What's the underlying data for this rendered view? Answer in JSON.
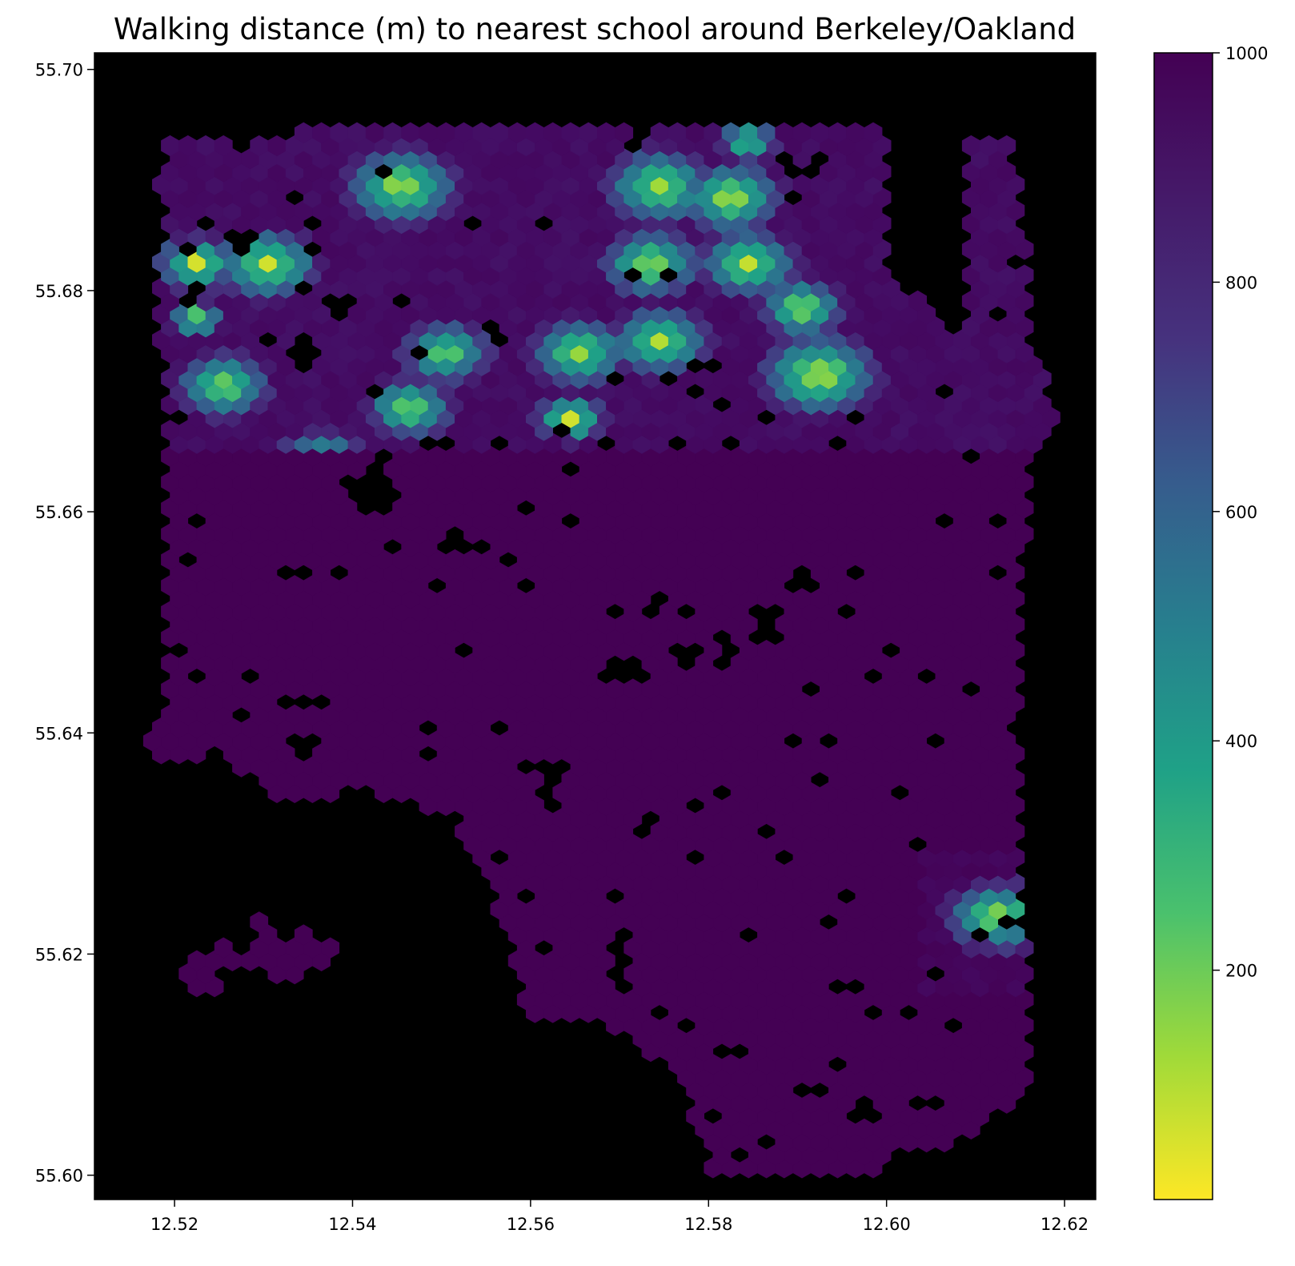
{
  "chart_data": {
    "type": "heatmap",
    "subtype": "hexbin",
    "title": "Walking distance (m) to nearest school around Berkeley/Oakland",
    "xlabel": "",
    "ylabel": "",
    "xlim": [
      12.511,
      12.6235
    ],
    "ylim": [
      55.5978,
      55.7015
    ],
    "x_ticks": [
      "12.52",
      "12.54",
      "12.56",
      "12.58",
      "12.60",
      "12.62"
    ],
    "x_tick_values": [
      12.52,
      12.54,
      12.56,
      12.58,
      12.6,
      12.62
    ],
    "y_ticks": [
      "55.60",
      "55.62",
      "55.64",
      "55.66",
      "55.68",
      "55.70"
    ],
    "y_tick_values": [
      55.6,
      55.62,
      55.64,
      55.66,
      55.68,
      55.7
    ],
    "background_color": "#000000",
    "grid": false,
    "colorbar": {
      "colormap": "viridis_r",
      "min": 0,
      "max": 1000,
      "ticks": [
        "200",
        "400",
        "600",
        "800",
        "1000"
      ],
      "tick_values": [
        200,
        400,
        600,
        800,
        1000
      ]
    },
    "hex_dx": 0.002,
    "hex_dy": 0.00117,
    "coverage_regions": [
      {
        "name": "north",
        "polygon": [
          [
            12.518,
            55.6935
          ],
          [
            12.537,
            55.6945
          ],
          [
            12.56,
            55.6945
          ],
          [
            12.575,
            55.6945
          ],
          [
            12.594,
            55.6945
          ],
          [
            12.6,
            55.6945
          ],
          [
            12.6,
            55.682
          ],
          [
            12.606,
            55.6775
          ],
          [
            12.609,
            55.6765
          ],
          [
            12.609,
            55.6935
          ],
          [
            12.614,
            55.6935
          ],
          [
            12.6155,
            55.685
          ],
          [
            12.616,
            55.676
          ],
          [
            12.619,
            55.669
          ],
          [
            12.6155,
            55.665
          ],
          [
            12.6165,
            55.6595
          ],
          [
            12.6145,
            55.652
          ],
          [
            12.615,
            55.643
          ],
          [
            12.6145,
            55.6315
          ],
          [
            12.6155,
            55.622
          ],
          [
            12.616,
            55.6075
          ],
          [
            12.608,
            55.603
          ],
          [
            12.595,
            55.5995
          ],
          [
            12.58,
            55.6005
          ],
          [
            12.5775,
            55.608
          ],
          [
            12.568,
            55.6145
          ],
          [
            12.5595,
            55.6145
          ],
          [
            12.5575,
            55.622
          ],
          [
            12.552,
            55.6315
          ],
          [
            12.546,
            55.634
          ],
          [
            12.532,
            55.634
          ],
          [
            12.5255,
            55.6375
          ],
          [
            12.516,
            55.637
          ],
          [
            12.519,
            55.642
          ],
          [
            12.5185,
            55.652
          ],
          [
            12.519,
            55.662
          ],
          [
            12.519,
            55.67
          ],
          [
            12.5175,
            55.678
          ],
          [
            12.519,
            55.685
          ]
        ]
      },
      {
        "name": "south-west-scatter",
        "polygon": [
          [
            12.521,
            55.619
          ],
          [
            12.528,
            55.6235
          ],
          [
            12.535,
            55.6225
          ],
          [
            12.5385,
            55.6205
          ],
          [
            12.533,
            55.6165
          ],
          [
            12.524,
            55.6165
          ],
          [
            12.519,
            55.6165
          ]
        ]
      }
    ],
    "gaps": [
      [
        12.563,
        55.6675,
        0.0045,
        0.0015
      ],
      [
        12.556,
        55.6755,
        0.0025,
        0.004
      ],
      [
        12.603,
        55.6815,
        0.0035,
        0.0025
      ],
      [
        12.612,
        55.6785,
        0.0025,
        0.003
      ],
      [
        12.6055,
        55.6825,
        0.002,
        0.002
      ],
      [
        12.5425,
        55.6615,
        0.0045,
        0.0025
      ],
      [
        12.559,
        55.6535,
        0.003,
        0.0025
      ],
      [
        12.5745,
        55.6515,
        0.0035,
        0.002
      ],
      [
        12.5795,
        55.6465,
        0.007,
        0.0025
      ],
      [
        12.571,
        55.6455,
        0.0055,
        0.002
      ],
      [
        12.5865,
        55.6495,
        0.003,
        0.0035
      ],
      [
        12.5905,
        55.6535,
        0.0025,
        0.002
      ],
      [
        12.5215,
        55.6475,
        0.0025,
        0.002
      ],
      [
        12.5485,
        55.6395,
        0.0025,
        0.003
      ],
      [
        12.5565,
        55.6405,
        0.0035,
        0.002
      ],
      [
        12.5275,
        55.6415,
        0.003,
        0.002
      ],
      [
        12.5345,
        55.6385,
        0.0025,
        0.002
      ],
      [
        12.5405,
        55.6345,
        0.0045,
        0.0015
      ],
      [
        12.5625,
        55.6355,
        0.003,
        0.0045
      ],
      [
        12.5735,
        55.6325,
        0.003,
        0.0045
      ],
      [
        12.5695,
        55.6195,
        0.002,
        0.006
      ],
      [
        12.5905,
        55.6075,
        0.0035,
        0.0015
      ],
      [
        12.5975,
        55.6055,
        0.004,
        0.002
      ],
      [
        12.6045,
        55.6065,
        0.005,
        0.0015
      ],
      [
        12.6105,
        55.6015,
        0.0045,
        0.0045
      ],
      [
        12.602,
        55.6015,
        0.004,
        0.0025
      ],
      [
        12.5475,
        55.6135,
        0.0035,
        0.0035
      ]
    ],
    "pockets": [
      [
        12.5405,
        55.6965,
        0.0012
      ],
      [
        12.5275,
        55.6845,
        0.0015
      ],
      [
        12.5345,
        55.6735,
        0.002
      ],
      [
        12.5385,
        55.6785,
        0.002
      ],
      [
        12.5495,
        55.6665,
        0.0015
      ],
      [
        12.5445,
        55.6565,
        0.0012
      ],
      [
        12.5715,
        55.6925,
        0.0012
      ],
      [
        12.5615,
        55.6865,
        0.0012
      ],
      [
        12.5905,
        55.6905,
        0.0012
      ],
      [
        12.5985,
        55.6935,
        0.0012
      ],
      [
        12.5825,
        55.6665,
        0.0012
      ],
      [
        12.5755,
        55.6715,
        0.0012
      ],
      [
        12.5455,
        55.6785,
        0.0012
      ],
      [
        12.5265,
        55.6655,
        0.0012
      ],
      [
        12.5515,
        55.6575,
        0.0012
      ],
      [
        12.5815,
        55.6345,
        0.0012
      ],
      [
        12.5935,
        55.6395,
        0.0012
      ],
      [
        12.5885,
        55.6285,
        0.0012
      ],
      [
        12.5845,
        55.6215,
        0.0012
      ],
      [
        12.5965,
        55.6175,
        0.0012
      ],
      [
        12.5825,
        55.6115,
        0.0012
      ],
      [
        12.5615,
        55.6205,
        0.0012
      ],
      [
        12.5935,
        55.6225,
        0.0012
      ],
      [
        12.6105,
        55.6215,
        0.0012
      ],
      [
        12.5535,
        55.6565,
        0.0012
      ],
      [
        12.5685,
        55.6665,
        0.0012
      ],
      [
        12.6065,
        55.6595,
        0.0012
      ],
      [
        12.6045,
        55.6455,
        0.0012
      ],
      [
        12.5985,
        55.6455,
        0.0012
      ],
      [
        12.6015,
        55.6345,
        0.0012
      ],
      [
        12.5405,
        55.6505,
        0.0012
      ],
      [
        12.5325,
        55.6545,
        0.0012
      ],
      [
        12.5675,
        55.6245,
        0.0012
      ]
    ],
    "hotspots": [
      {
        "x": 12.5225,
        "y": 55.6825,
        "r": 0.0035,
        "min": 60
      },
      {
        "x": 12.5305,
        "y": 55.6825,
        "r": 0.0045,
        "min": 60
      },
      {
        "x": 12.5225,
        "y": 55.6775,
        "r": 0.0025,
        "min": 120
      },
      {
        "x": 12.5255,
        "y": 55.6715,
        "r": 0.0045,
        "min": 120
      },
      {
        "x": 12.5455,
        "y": 55.6895,
        "r": 0.005,
        "min": 70
      },
      {
        "x": 12.5365,
        "y": 55.6645,
        "r": 0.0045,
        "min": 130
      },
      {
        "x": 12.5465,
        "y": 55.6695,
        "r": 0.004,
        "min": 100
      },
      {
        "x": 12.5505,
        "y": 55.6745,
        "r": 0.0045,
        "min": 150
      },
      {
        "x": 12.5645,
        "y": 55.6685,
        "r": 0.003,
        "min": 40
      },
      {
        "x": 12.5655,
        "y": 55.6745,
        "r": 0.0045,
        "min": 100
      },
      {
        "x": 12.5745,
        "y": 55.6755,
        "r": 0.0045,
        "min": 80
      },
      {
        "x": 12.5735,
        "y": 55.6825,
        "r": 0.0045,
        "min": 80
      },
      {
        "x": 12.5745,
        "y": 55.6895,
        "r": 0.005,
        "min": 100
      },
      {
        "x": 12.5825,
        "y": 55.6885,
        "r": 0.0045,
        "min": 60
      },
      {
        "x": 12.5845,
        "y": 55.6825,
        "r": 0.0045,
        "min": 90
      },
      {
        "x": 12.5905,
        "y": 55.6785,
        "r": 0.0035,
        "min": 30
      },
      {
        "x": 12.5925,
        "y": 55.6725,
        "r": 0.005,
        "min": 30
      },
      {
        "x": 12.5845,
        "y": 55.6935,
        "r": 0.003,
        "min": 180
      },
      {
        "x": 12.6125,
        "y": 55.6235,
        "r": 0.0045,
        "min": 80
      }
    ],
    "value_field": {
      "default": 1000,
      "north_rule": "y >= 55.666 gives 900 base, lower near hotspots",
      "note": "values are walking distances in metres; hexes outside coverage are not drawn (black background)"
    }
  }
}
